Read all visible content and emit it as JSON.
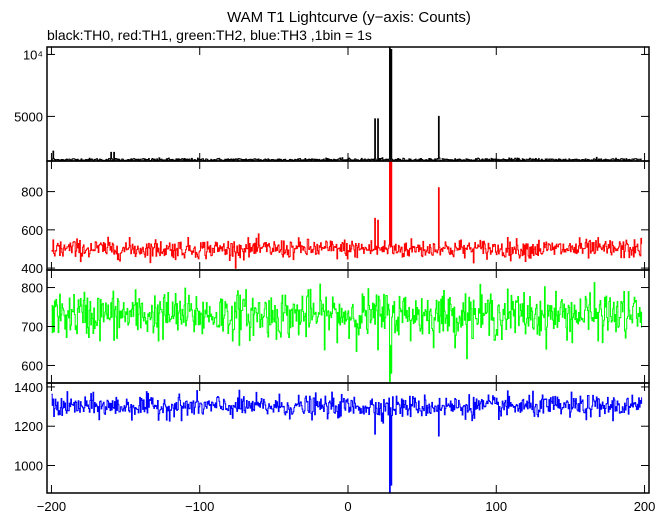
{
  "chart_data": {
    "type": "line",
    "title": "WAM T1 Lightcurve (y−axis: Counts)",
    "subtitle": "black:TH0, red:TH1, green:TH2, blue:TH3 ,1bin = 1s",
    "xlim": [
      -203,
      203
    ],
    "x_ticks": [
      -200,
      -100,
      0,
      100,
      200
    ],
    "x_tick_labels": [
      "−200",
      "−100",
      "0",
      "100",
      "200"
    ],
    "grid": false,
    "series": [
      {
        "color": "#000000",
        "ylim": [
          1400,
          10600
        ],
        "y_ticks": [
          5000,
          10000
        ],
        "y_tick_labels": [
          "5000",
          "10⁴"
        ],
        "baseline": 1500,
        "noise": 60,
        "features": [
          {
            "x": -199,
            "y": 2200
          },
          {
            "x": -160,
            "y": 2100
          },
          {
            "x": -158,
            "y": 2100
          },
          {
            "x": 18,
            "y": 4800
          },
          {
            "x": 20,
            "y": 4800
          },
          {
            "x": 28,
            "y": 11000
          },
          {
            "x": 29,
            "y": 10400
          },
          {
            "x": 61,
            "y": 5000
          }
        ]
      },
      {
        "color": "#ff0000",
        "ylim": [
          390,
          960
        ],
        "y_ticks": [
          400,
          600,
          800
        ],
        "y_tick_labels": [
          "400",
          "600",
          "800"
        ],
        "baseline": 500,
        "noise": 25,
        "features": [
          {
            "x": 18,
            "y": 660
          },
          {
            "x": 20,
            "y": 650
          },
          {
            "x": 28,
            "y": 1000
          },
          {
            "x": 29,
            "y": 960
          },
          {
            "x": 61,
            "y": 820
          }
        ]
      },
      {
        "color": "#00ff00",
        "ylim": [
          555,
          845
        ],
        "y_ticks": [
          600,
          700,
          800
        ],
        "y_tick_labels": [
          "600",
          "700",
          "800"
        ],
        "baseline": 730,
        "noise": 30,
        "features": [
          {
            "x": 28,
            "y": 550
          },
          {
            "x": 29,
            "y": 580
          },
          {
            "x": 20,
            "y": 640
          }
        ]
      },
      {
        "color": "#0000ff",
        "ylim": [
          860,
          1420
        ],
        "y_ticks": [
          1000,
          1200,
          1400
        ],
        "y_tick_labels": [
          "1000",
          "1200",
          "1400"
        ],
        "baseline": 1300,
        "noise": 28,
        "features": [
          {
            "x": 18,
            "y": 1160
          },
          {
            "x": 28,
            "y": 850
          },
          {
            "x": 29,
            "y": 900
          },
          {
            "x": 61,
            "y": 1150
          }
        ]
      }
    ]
  }
}
